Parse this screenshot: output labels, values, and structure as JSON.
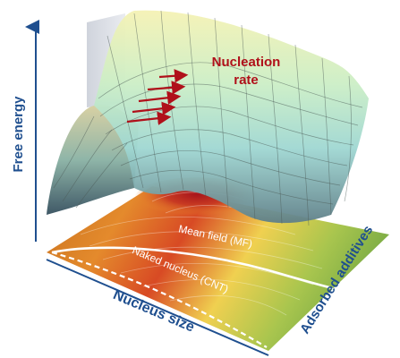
{
  "labels": {
    "y_axis": "Free energy",
    "nucleation": "Nucleation",
    "rate": "rate",
    "mean_field": "Mean field (MF)",
    "naked_nucleus": "Naked nucleus (CNT)",
    "nucleus_size": "Nucleus size",
    "adsorbed_additives": "Adsorbed additives"
  },
  "colors": {
    "axis_blue": "#1f4f8f",
    "arrow_red": "#b0101a",
    "surface_top": "#f3f0b3",
    "surface_mid": "#b6e8d6",
    "surface_dark": "#556f78",
    "map_red": "#b8241c",
    "map_orange": "#ec8a2e",
    "map_yellow": "#f3e04a",
    "map_green": "#8bb94c"
  }
}
